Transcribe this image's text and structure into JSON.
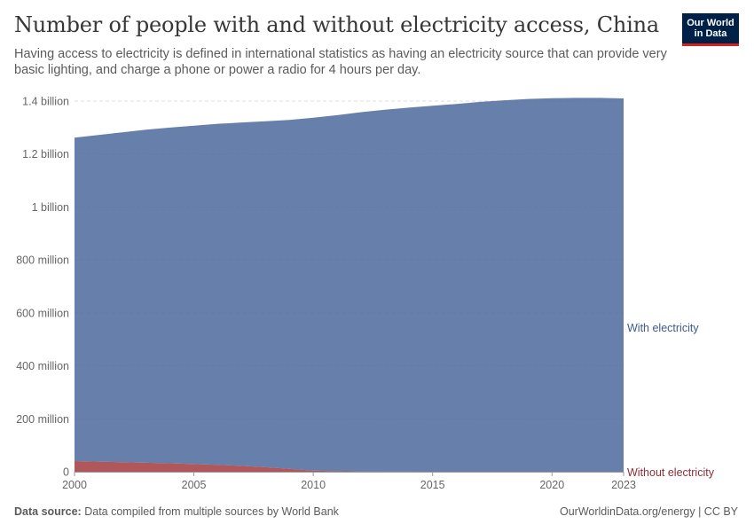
{
  "title": "Number of people with and without electricity access, China",
  "subtitle": "Having access to electricity is defined in international statistics as having an electricity source that can provide very basic lighting, and charge a phone or power a radio for 4 hours per day.",
  "logo": {
    "line1": "Our World",
    "line2": "in Data"
  },
  "footer": {
    "source_label": "Data source:",
    "source_text": "Data compiled from multiple sources by World Bank",
    "right_text": "OurWorldinData.org/energy | CC BY"
  },
  "chart_data": {
    "type": "area",
    "stacked": true,
    "x": [
      2000,
      2001,
      2002,
      2003,
      2004,
      2005,
      2006,
      2007,
      2008,
      2009,
      2010,
      2011,
      2012,
      2013,
      2014,
      2015,
      2016,
      2017,
      2018,
      2019,
      2020,
      2021,
      2022,
      2023
    ],
    "series": [
      {
        "name": "Without electricity",
        "color": "#a2393f",
        "values": [
          40000000,
          38000000,
          36000000,
          34000000,
          32000000,
          29000000,
          26000000,
          22000000,
          17000000,
          11000000,
          4000000,
          2000000,
          1000000,
          500000,
          300000,
          200000,
          100000,
          0,
          0,
          0,
          0,
          0,
          0,
          0
        ]
      },
      {
        "name": "With electricity",
        "color": "#4c6a9c",
        "values": [
          1222000000,
          1234000000,
          1246000000,
          1258000000,
          1268000000,
          1278000000,
          1288000000,
          1297000000,
          1307000000,
          1318000000,
          1333000000,
          1345000000,
          1357000000,
          1367000000,
          1375000000,
          1382000000,
          1389000000,
          1397000000,
          1403000000,
          1408000000,
          1411000000,
          1412000000,
          1412000000,
          1410000000
        ]
      }
    ],
    "y_ticks": [
      {
        "value": 0,
        "label": "0"
      },
      {
        "value": 200000000,
        "label": "200 million"
      },
      {
        "value": 400000000,
        "label": "400 million"
      },
      {
        "value": 600000000,
        "label": "600 million"
      },
      {
        "value": 800000000,
        "label": "800 million"
      },
      {
        "value": 1000000000,
        "label": "1 billion"
      },
      {
        "value": 1200000000,
        "label": "1.2 billion"
      },
      {
        "value": 1400000000,
        "label": "1.4 billion"
      }
    ],
    "x_ticks": [
      2000,
      2005,
      2010,
      2015,
      2020,
      2023
    ],
    "ylim": [
      0,
      1400000000
    ],
    "xlim": [
      2000,
      2023
    ],
    "grid": true,
    "legend_placement": "right, inline labels"
  }
}
